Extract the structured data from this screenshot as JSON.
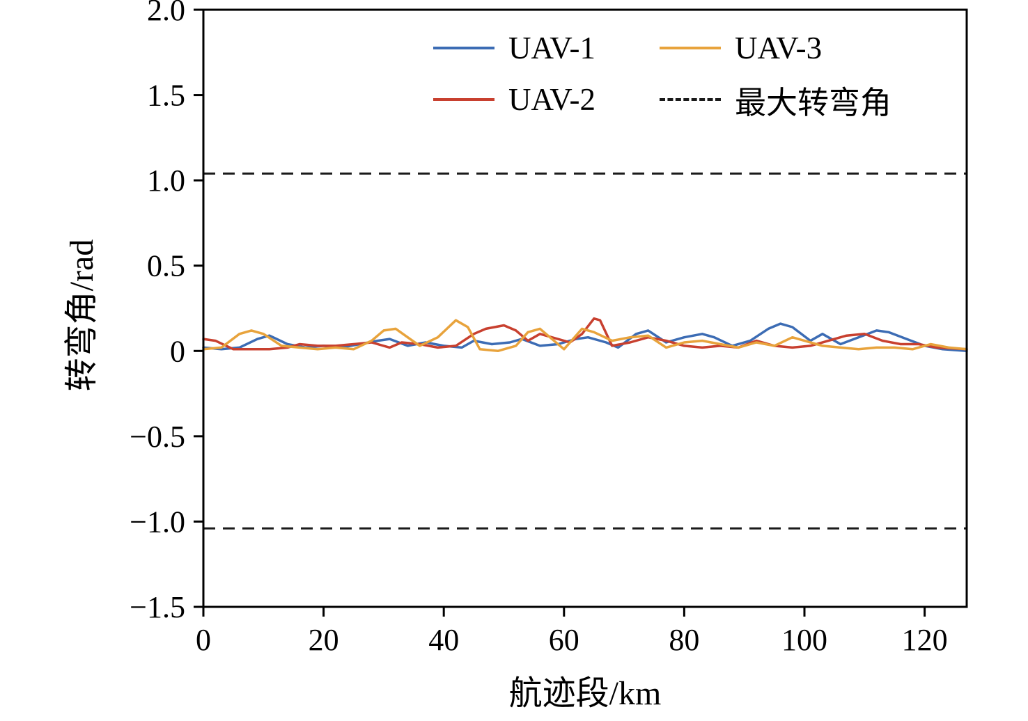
{
  "figure": {
    "background": "#ffffff"
  },
  "chart_data": {
    "type": "line",
    "title": "",
    "xlabel": "航迹段/km",
    "ylabel": "转弯角/rad",
    "xlim": [
      0,
      127
    ],
    "ylim": [
      -1.5,
      2.0
    ],
    "xticks": [
      0,
      20,
      40,
      60,
      80,
      100,
      120
    ],
    "xtick_labels": [
      "0",
      "20",
      "40",
      "60",
      "80",
      "100",
      "120"
    ],
    "yticks": [
      -1.5,
      -1.0,
      -0.5,
      0,
      0.5,
      1.0,
      1.5,
      2.0
    ],
    "ytick_labels": [
      "−1.5",
      "−1.0",
      "−0.5",
      "0",
      "0.5",
      "1.0",
      "1.5",
      "2.0"
    ],
    "grid": false,
    "legend_position": "upper-center-inside",
    "frame_color": "#000000",
    "series": [
      {
        "name": "UAV-1",
        "color": "#3c6cb4",
        "style": "solid",
        "points": [
          [
            0,
            0.02
          ],
          [
            3,
            0.01
          ],
          [
            6,
            0.02
          ],
          [
            9,
            0.07
          ],
          [
            11,
            0.09
          ],
          [
            14,
            0.04
          ],
          [
            17,
            0.02
          ],
          [
            20,
            0.03
          ],
          [
            23,
            0.02
          ],
          [
            26,
            0.04
          ],
          [
            29,
            0.06
          ],
          [
            31,
            0.07
          ],
          [
            34,
            0.03
          ],
          [
            37,
            0.05
          ],
          [
            40,
            0.03
          ],
          [
            43,
            0.02
          ],
          [
            45,
            0.06
          ],
          [
            48,
            0.04
          ],
          [
            51,
            0.05
          ],
          [
            53,
            0.07
          ],
          [
            56,
            0.03
          ],
          [
            59,
            0.04
          ],
          [
            62,
            0.07
          ],
          [
            64,
            0.08
          ],
          [
            67,
            0.05
          ],
          [
            69,
            0.02
          ],
          [
            72,
            0.1
          ],
          [
            74,
            0.12
          ],
          [
            77,
            0.05
          ],
          [
            80,
            0.08
          ],
          [
            83,
            0.1
          ],
          [
            85,
            0.08
          ],
          [
            88,
            0.03
          ],
          [
            91,
            0.06
          ],
          [
            94,
            0.13
          ],
          [
            96,
            0.16
          ],
          [
            98,
            0.14
          ],
          [
            101,
            0.06
          ],
          [
            103,
            0.1
          ],
          [
            106,
            0.04
          ],
          [
            109,
            0.08
          ],
          [
            112,
            0.12
          ],
          [
            114,
            0.11
          ],
          [
            117,
            0.07
          ],
          [
            120,
            0.03
          ],
          [
            123,
            0.01
          ],
          [
            127,
            0.0
          ]
        ]
      },
      {
        "name": "UAV-2",
        "color": "#c8402f",
        "style": "solid",
        "points": [
          [
            0,
            0.07
          ],
          [
            2,
            0.06
          ],
          [
            5,
            0.01
          ],
          [
            8,
            0.01
          ],
          [
            11,
            0.01
          ],
          [
            14,
            0.02
          ],
          [
            16,
            0.04
          ],
          [
            19,
            0.03
          ],
          [
            22,
            0.03
          ],
          [
            25,
            0.04
          ],
          [
            28,
            0.05
          ],
          [
            31,
            0.02
          ],
          [
            33,
            0.05
          ],
          [
            36,
            0.04
          ],
          [
            39,
            0.02
          ],
          [
            42,
            0.03
          ],
          [
            45,
            0.1
          ],
          [
            47,
            0.13
          ],
          [
            50,
            0.15
          ],
          [
            52,
            0.12
          ],
          [
            54,
            0.06
          ],
          [
            56,
            0.1
          ],
          [
            58,
            0.08
          ],
          [
            61,
            0.05
          ],
          [
            63,
            0.1
          ],
          [
            65,
            0.19
          ],
          [
            66,
            0.18
          ],
          [
            68,
            0.03
          ],
          [
            71,
            0.05
          ],
          [
            74,
            0.08
          ],
          [
            77,
            0.06
          ],
          [
            80,
            0.03
          ],
          [
            83,
            0.02
          ],
          [
            86,
            0.03
          ],
          [
            89,
            0.02
          ],
          [
            92,
            0.06
          ],
          [
            95,
            0.03
          ],
          [
            98,
            0.02
          ],
          [
            101,
            0.03
          ],
          [
            104,
            0.06
          ],
          [
            107,
            0.09
          ],
          [
            110,
            0.1
          ],
          [
            113,
            0.06
          ],
          [
            116,
            0.04
          ],
          [
            119,
            0.04
          ],
          [
            122,
            0.02
          ],
          [
            127,
            0.01
          ]
        ]
      },
      {
        "name": "UAV-3",
        "color": "#e8a33c",
        "style": "solid",
        "points": [
          [
            0,
            0.01
          ],
          [
            3,
            0.02
          ],
          [
            6,
            0.1
          ],
          [
            8,
            0.12
          ],
          [
            10,
            0.1
          ],
          [
            13,
            0.03
          ],
          [
            16,
            0.02
          ],
          [
            19,
            0.01
          ],
          [
            22,
            0.02
          ],
          [
            25,
            0.01
          ],
          [
            28,
            0.06
          ],
          [
            30,
            0.12
          ],
          [
            32,
            0.13
          ],
          [
            34,
            0.08
          ],
          [
            36,
            0.03
          ],
          [
            39,
            0.08
          ],
          [
            42,
            0.18
          ],
          [
            44,
            0.14
          ],
          [
            46,
            0.01
          ],
          [
            49,
            0.0
          ],
          [
            52,
            0.03
          ],
          [
            54,
            0.11
          ],
          [
            56,
            0.13
          ],
          [
            58,
            0.07
          ],
          [
            60,
            0.01
          ],
          [
            63,
            0.13
          ],
          [
            65,
            0.11
          ],
          [
            68,
            0.06
          ],
          [
            71,
            0.08
          ],
          [
            74,
            0.09
          ],
          [
            77,
            0.02
          ],
          [
            80,
            0.05
          ],
          [
            83,
            0.06
          ],
          [
            86,
            0.04
          ],
          [
            89,
            0.02
          ],
          [
            92,
            0.05
          ],
          [
            95,
            0.03
          ],
          [
            98,
            0.08
          ],
          [
            100,
            0.06
          ],
          [
            103,
            0.03
          ],
          [
            106,
            0.02
          ],
          [
            109,
            0.01
          ],
          [
            112,
            0.02
          ],
          [
            115,
            0.02
          ],
          [
            118,
            0.01
          ],
          [
            121,
            0.04
          ],
          [
            124,
            0.02
          ],
          [
            127,
            0.01
          ]
        ]
      },
      {
        "name": "最大转弯角",
        "color": "#1a1a1a",
        "style": "dashed",
        "y_values": [
          1.04,
          -1.04
        ]
      }
    ]
  }
}
